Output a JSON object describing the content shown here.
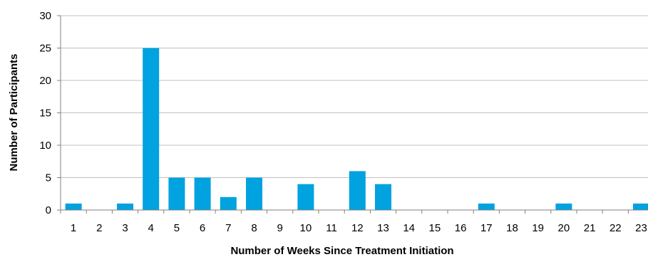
{
  "chart_data": {
    "type": "bar",
    "title": "",
    "xlabel": "Number of Weeks Since Treatment Initiation",
    "ylabel": "Number of Participants",
    "categories": [
      "1",
      "2",
      "3",
      "4",
      "5",
      "6",
      "7",
      "8",
      "9",
      "10",
      "11",
      "12",
      "13",
      "14",
      "15",
      "16",
      "17",
      "18",
      "19",
      "20",
      "21",
      "22",
      "23"
    ],
    "values": [
      1,
      0,
      1,
      25,
      5,
      5,
      2,
      5,
      0,
      4,
      0,
      6,
      4,
      0,
      0,
      0,
      1,
      0,
      0,
      1,
      0,
      0,
      1
    ],
    "ylim": [
      0,
      30
    ],
    "yticks": [
      0,
      5,
      10,
      15,
      20,
      25,
      30
    ],
    "grid": true,
    "legend": "none",
    "bar_color": "#00A2DF",
    "grid_color": "#C0C0C0"
  }
}
